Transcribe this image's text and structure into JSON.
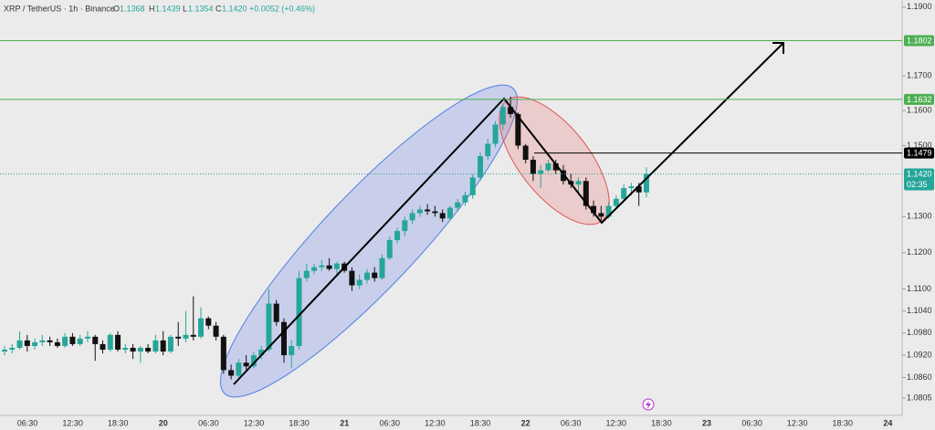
{
  "chart_data": {
    "type": "candlestick",
    "header": {
      "symbol": "XRP / TetherUS · 1h · Binance",
      "letters": [
        "O",
        "H",
        "L",
        "C"
      ],
      "open": 1.1368,
      "high": 1.1439,
      "low": 1.1354,
      "close": {
        "value": 1.142,
        "label": "1.1420"
      },
      "change": "+0.0052 (+0.46%)"
    },
    "log_scale": true,
    "grid": false,
    "ylim": [
      1.0759,
      1.1921
    ],
    "yticks": [
      {
        "value": 1.19,
        "label": "1.1900"
      },
      {
        "value": 1.17,
        "label": "1.1700"
      },
      {
        "value": 1.16,
        "label": "1.1600"
      },
      {
        "value": 1.15,
        "label": "1.1500"
      },
      {
        "value": 1.13,
        "label": "1.1300"
      },
      {
        "value": 1.12,
        "label": "1.1200"
      },
      {
        "value": 1.11,
        "label": "1.1100"
      },
      {
        "value": 1.104,
        "label": "1.1040"
      },
      {
        "value": 1.098,
        "label": "1.0980"
      },
      {
        "value": 1.092,
        "label": "1.0920"
      },
      {
        "value": 1.086,
        "label": "1.0860"
      },
      1.0805
    ],
    "x_labels": [
      "06:30",
      "12:30",
      "18:30",
      "20",
      "06:30",
      "12:30",
      "18:30",
      "21",
      "06:30",
      "12:30",
      "18:30",
      "22",
      "06:30",
      "12:30",
      "18:30",
      "23",
      "06:30",
      "12:30",
      "18:30",
      "24"
    ],
    "levels": [
      {
        "price": 1.1802,
        "color": "#4caf50"
      },
      {
        "price": 1.1632,
        "color": "#4caf50"
      },
      {
        "price": 1.1479,
        "color": "#000000"
      }
    ],
    "current": {
      "price": {
        "value": 1.142,
        "label": "1.1420"
      },
      "countdown": "02:35",
      "color": "#26a69a"
    },
    "candles": {
      "up_color": "#26a69a",
      "down_color": "#111111",
      "open": [
        1.093,
        1.0935,
        1.094,
        1.096,
        1.0945,
        1.0955,
        1.096,
        1.0955,
        1.0945,
        1.097,
        1.095,
        1.0965,
        1.097,
        1.095,
        1.0935,
        1.0975,
        1.0935,
        1.094,
        1.093,
        1.094,
        1.093,
        1.096,
        1.093,
        1.097,
        1.0965,
        1.0975,
        1.097,
        1.102,
        1.1,
        1.097,
        1.088,
        1.0865,
        1.09,
        1.089,
        1.092,
        1.0935,
        1.106,
        1.101,
        1.092,
        1.0945,
        1.113,
        1.115,
        1.116,
        1.1165,
        1.1155,
        1.117,
        1.115,
        1.111,
        1.1125,
        1.1145,
        1.113,
        1.1185,
        1.1235,
        1.126,
        1.129,
        1.131,
        1.132,
        1.1315,
        1.131,
        1.1295,
        1.1325,
        1.134,
        1.136,
        1.141,
        1.147,
        1.1505,
        1.156,
        1.161,
        1.159,
        1.15,
        1.146,
        1.142,
        1.143,
        1.145,
        1.143,
        1.14,
        1.139,
        1.14,
        1.133,
        1.131,
        1.13,
        1.133,
        1.135,
        1.138,
        1.1385,
        1.1368
      ],
      "high": [
        1.0945,
        1.095,
        1.0985,
        1.0975,
        1.0965,
        1.0975,
        1.097,
        1.0965,
        1.098,
        1.098,
        1.0975,
        1.0985,
        1.0975,
        1.096,
        1.098,
        1.0985,
        1.095,
        1.095,
        1.0945,
        1.095,
        1.0975,
        1.0985,
        1.0975,
        1.101,
        1.104,
        1.108,
        1.105,
        1.1025,
        1.101,
        1.0975,
        1.0895,
        1.091,
        1.092,
        1.093,
        1.0945,
        1.11,
        1.107,
        1.102,
        1.096,
        1.115,
        1.117,
        1.117,
        1.118,
        1.1185,
        1.1175,
        1.1175,
        1.116,
        1.114,
        1.1155,
        1.116,
        1.1195,
        1.1245,
        1.127,
        1.13,
        1.132,
        1.133,
        1.1335,
        1.133,
        1.132,
        1.133,
        1.135,
        1.137,
        1.142,
        1.148,
        1.152,
        1.157,
        1.162,
        1.164,
        1.1595,
        1.1505,
        1.147,
        1.1445,
        1.146,
        1.146,
        1.1445,
        1.142,
        1.141,
        1.141,
        1.1345,
        1.133,
        1.134,
        1.136,
        1.139,
        1.1395,
        1.1395,
        1.1439
      ],
      "low": [
        1.092,
        1.0925,
        1.0935,
        1.093,
        1.0935,
        1.0945,
        1.0945,
        1.094,
        1.094,
        1.0945,
        1.0945,
        1.0955,
        1.0905,
        1.0925,
        1.093,
        1.093,
        1.0925,
        1.091,
        1.09,
        1.0925,
        1.0925,
        1.092,
        1.0925,
        1.0945,
        1.0955,
        1.096,
        1.0965,
        1.099,
        1.096,
        1.087,
        1.0855,
        1.086,
        1.088,
        1.0885,
        1.091,
        1.093,
        1.1,
        1.09,
        1.0885,
        1.0935,
        1.112,
        1.114,
        1.115,
        1.115,
        1.114,
        1.1145,
        1.1095,
        1.11,
        1.1115,
        1.112,
        1.1125,
        1.118,
        1.1225,
        1.1245,
        1.128,
        1.13,
        1.1305,
        1.13,
        1.1285,
        1.129,
        1.1315,
        1.133,
        1.135,
        1.14,
        1.146,
        1.1495,
        1.1545,
        1.158,
        1.149,
        1.145,
        1.14,
        1.138,
        1.1425,
        1.142,
        1.139,
        1.138,
        1.136,
        1.132,
        1.13,
        1.129,
        1.1295,
        1.132,
        1.1345,
        1.136,
        1.133,
        1.1354
      ],
      "close": [
        1.0935,
        1.094,
        1.096,
        1.0945,
        1.0955,
        1.096,
        1.0955,
        1.0945,
        1.097,
        1.095,
        1.0965,
        1.097,
        1.095,
        1.0935,
        1.0975,
        1.0935,
        1.094,
        1.093,
        1.094,
        1.093,
        1.096,
        1.093,
        1.097,
        1.0965,
        1.0975,
        1.097,
        1.102,
        1.1,
        1.097,
        1.088,
        1.0865,
        1.09,
        1.089,
        1.092,
        1.0935,
        1.106,
        1.101,
        1.092,
        1.0945,
        1.113,
        1.115,
        1.116,
        1.1165,
        1.1155,
        1.117,
        1.115,
        1.111,
        1.1125,
        1.1145,
        1.113,
        1.1185,
        1.1235,
        1.126,
        1.129,
        1.131,
        1.132,
        1.1315,
        1.131,
        1.1295,
        1.1325,
        1.134,
        1.136,
        1.141,
        1.147,
        1.1505,
        1.156,
        1.161,
        1.159,
        1.15,
        1.146,
        1.142,
        1.143,
        1.145,
        1.143,
        1.14,
        1.139,
        1.14,
        1.133,
        1.131,
        1.13,
        1.133,
        1.135,
        1.138,
        1.1385,
        1.1368,
        1.142
      ]
    }
  }
}
